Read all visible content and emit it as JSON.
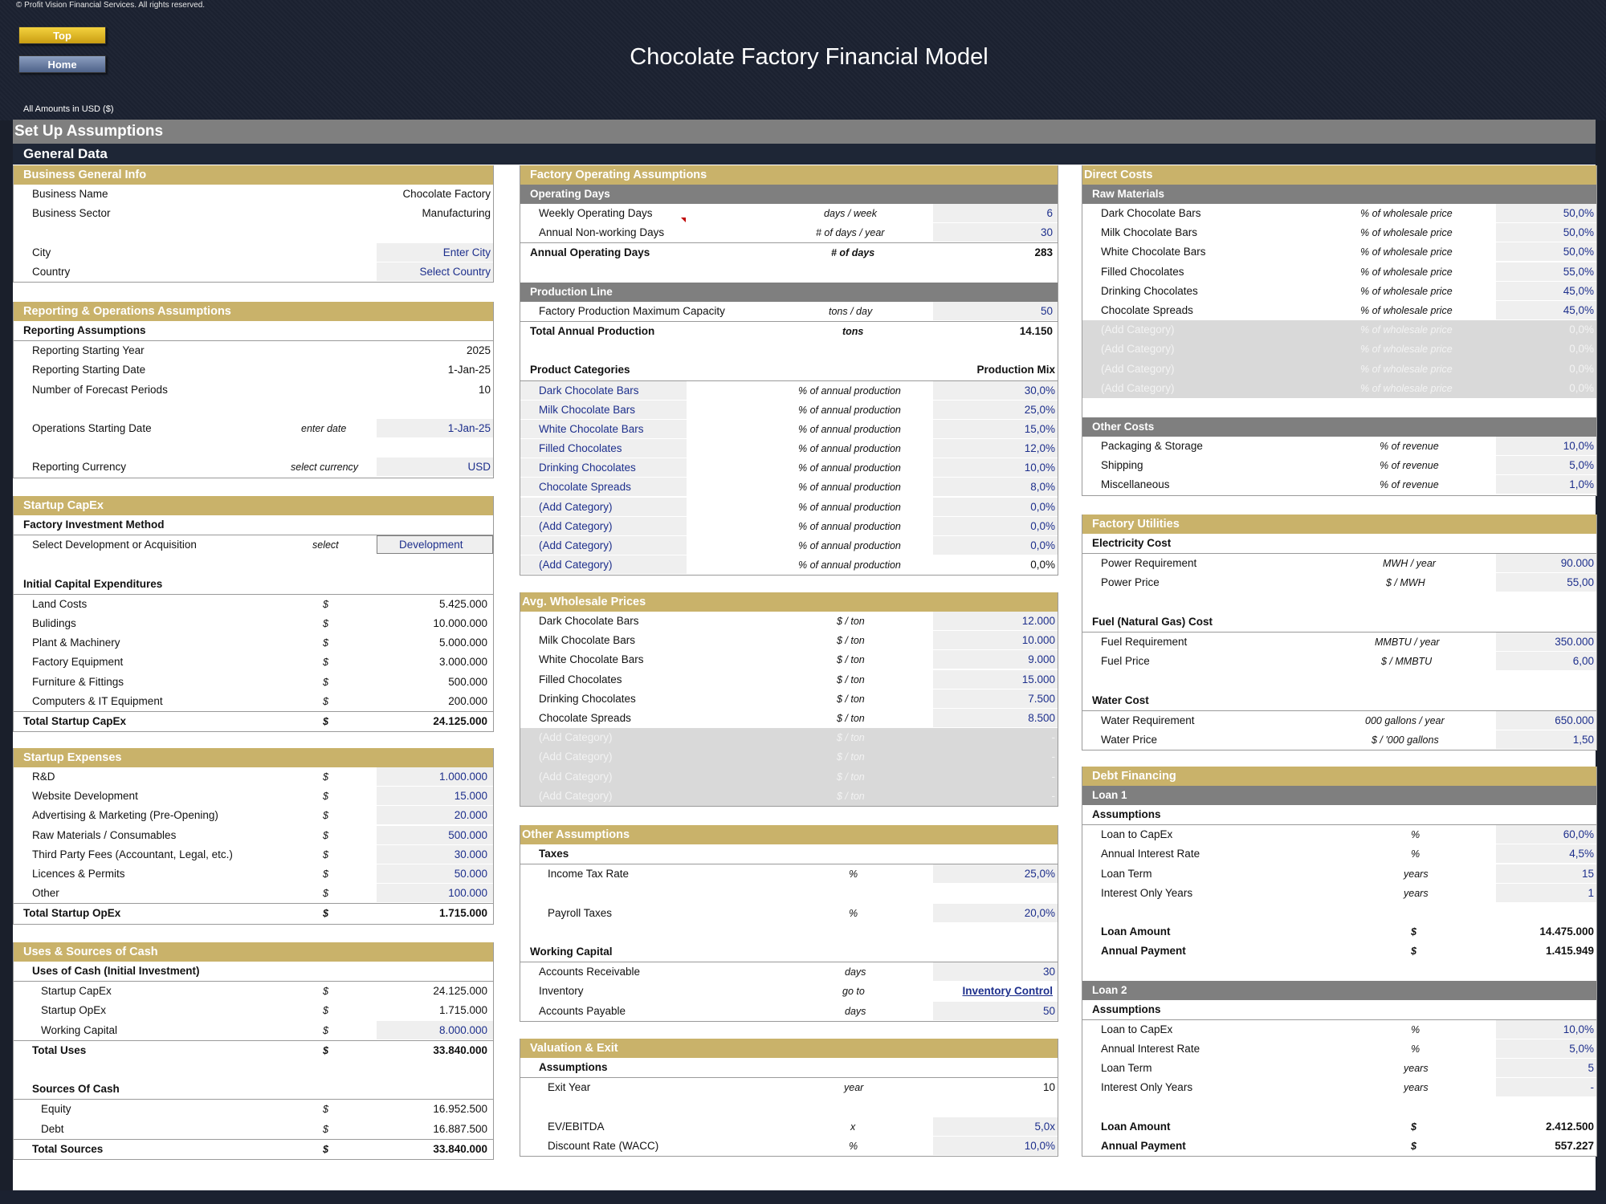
{
  "copyright": "© Profit Vision Financial Services. All rights reserved.",
  "buttons": {
    "top": "Top",
    "home": "Home"
  },
  "title": "Chocolate Factory Financial Model",
  "amounts_label": "All Amounts in  USD ($)",
  "section_title": "Set Up Assumptions",
  "subsection_title": "General Data",
  "business_info": {
    "header": "Business General Info",
    "business_name_label": "Business Name",
    "business_name": "Chocolate Factory",
    "sector_label": "Business Sector",
    "sector": "Manufacturing",
    "city_label": "City",
    "city": "Enter City",
    "country_label": "Country",
    "country": "Select Country"
  },
  "reporting": {
    "header": "Reporting & Operations Assumptions",
    "sub": "Reporting Assumptions",
    "start_year_label": "Reporting Starting Year",
    "start_year": "2025",
    "start_date_label": "Reporting Starting Date",
    "start_date": "1-Jan-25",
    "periods_label": "Number of Forecast Periods",
    "periods": "10",
    "ops_date_label": "Operations Starting Date",
    "ops_date_unit": "enter date",
    "ops_date": "1-Jan-25",
    "currency_label": "Reporting Currency",
    "currency_unit": "select currency",
    "currency": "USD"
  },
  "capex": {
    "header": "Startup CapEx",
    "method_sub": "Factory Investment Method",
    "method_label": "Select Development or Acquisition",
    "method_unit": "select",
    "method": "Development",
    "initial_sub": "Initial Capital Expenditures",
    "items": [
      {
        "label": "Land Costs",
        "unit": "$",
        "value": "5.425.000"
      },
      {
        "label": "Bulidings",
        "unit": "$",
        "value": "10.000.000"
      },
      {
        "label": "Plant & Machinery",
        "unit": "$",
        "value": "5.000.000"
      },
      {
        "label": "Factory Equipment",
        "unit": "$",
        "value": "3.000.000"
      },
      {
        "label": "Furniture & Fittings",
        "unit": "$",
        "value": "500.000"
      },
      {
        "label": "Computers & IT Equipment",
        "unit": "$",
        "value": "200.000"
      }
    ],
    "total_label": "Total Startup CapEx",
    "total_unit": "$",
    "total": "24.125.000"
  },
  "expenses": {
    "header": "Startup Expenses",
    "items": [
      {
        "label": "R&D",
        "unit": "$",
        "value": "1.000.000"
      },
      {
        "label": "Website Development",
        "unit": "$",
        "value": "15.000"
      },
      {
        "label": "Advertising & Marketing (Pre-Opening)",
        "unit": "$",
        "value": "20.000"
      },
      {
        "label": "Raw Materials / Consumables",
        "unit": "$",
        "value": "500.000"
      },
      {
        "label": "Third Party Fees (Accountant, Legal, etc.)",
        "unit": "$",
        "value": "30.000"
      },
      {
        "label": "Licences & Permits",
        "unit": "$",
        "value": "50.000"
      },
      {
        "label": "Other",
        "unit": "$",
        "value": "100.000"
      }
    ],
    "total_label": "Total Startup OpEx",
    "total_unit": "$",
    "total": "1.715.000"
  },
  "uses_sources": {
    "header": "Uses & Sources of Cash",
    "uses_sub": "Uses of Cash (Initial Investment)",
    "uses": [
      {
        "label": "Startup CapEx",
        "unit": "$",
        "value": "24.125.000"
      },
      {
        "label": "Startup OpEx",
        "unit": "$",
        "value": "1.715.000"
      },
      {
        "label": "Working Capital",
        "unit": "$",
        "value": "8.000.000"
      }
    ],
    "total_uses_label": "Total Uses",
    "total_uses_unit": "$",
    "total_uses": "33.840.000",
    "sources_sub": "Sources Of Cash",
    "sources": [
      {
        "label": "Equity",
        "unit": "$",
        "value": "16.952.500"
      },
      {
        "label": "Debt",
        "unit": "$",
        "value": "16.887.500"
      }
    ],
    "total_sources_label": "Total Sources",
    "total_sources_unit": "$",
    "total_sources": "33.840.000"
  },
  "factory_ops": {
    "header": "Factory Operating Assumptions",
    "op_days_sub": "Operating Days",
    "weekly_label": "Weekly Operating Days",
    "weekly_unit": "days / week",
    "weekly": "6",
    "nonwork_label": "Annual Non-working Days",
    "nonwork_unit": "# of days / year",
    "nonwork": "30",
    "annual_label": "Annual Operating Days",
    "annual_unit": "# of days",
    "annual": "283",
    "prod_sub": "Production Line",
    "capacity_label": "Factory Production Maximum Capacity",
    "capacity_unit": "tons / day",
    "capacity": "50",
    "total_prod_label": "Total Annual Production",
    "total_prod_unit": "tons",
    "total_prod": "14.150",
    "categories_label": "Product Categories",
    "mix_label": "Production Mix",
    "categories": [
      {
        "label": "Dark Chocolate Bars",
        "unit": "% of annual production",
        "value": "30,0%"
      },
      {
        "label": "Milk Chocolate Bars",
        "unit": "% of annual production",
        "value": "25,0%"
      },
      {
        "label": "White Chocolate Bars",
        "unit": "% of annual production",
        "value": "15,0%"
      },
      {
        "label": "Filled Chocolates",
        "unit": "% of annual production",
        "value": "12,0%"
      },
      {
        "label": "Drinking Chocolates",
        "unit": "% of annual production",
        "value": "10,0%"
      },
      {
        "label": "Chocolate Spreads",
        "unit": "% of annual production",
        "value": "8,0%"
      },
      {
        "label": "(Add Category)",
        "unit": "% of annual production",
        "value": "0,0%"
      },
      {
        "label": "(Add Category)",
        "unit": "% of annual production",
        "value": "0,0%"
      },
      {
        "label": "(Add Category)",
        "unit": "% of annual production",
        "value": "0,0%"
      },
      {
        "label": "(Add Category)",
        "unit": "% of annual production",
        "value": "0,0%"
      }
    ]
  },
  "wholesale": {
    "header": "Avg. Wholesale Prices",
    "items": [
      {
        "label": "Dark Chocolate Bars",
        "unit": "$ / ton",
        "value": "12.000"
      },
      {
        "label": "Milk Chocolate Bars",
        "unit": "$ / ton",
        "value": "10.000"
      },
      {
        "label": "White Chocolate Bars",
        "unit": "$ / ton",
        "value": "9.000"
      },
      {
        "label": "Filled Chocolates",
        "unit": "$ / ton",
        "value": "15.000"
      },
      {
        "label": "Drinking Chocolates",
        "unit": "$ / ton",
        "value": "7.500"
      },
      {
        "label": "Chocolate Spreads",
        "unit": "$ / ton",
        "value": "8.500"
      },
      {
        "label": "(Add Category)",
        "unit": "$ / ton",
        "value": "-"
      },
      {
        "label": "(Add Category)",
        "unit": "$ / ton",
        "value": "-"
      },
      {
        "label": "(Add Category)",
        "unit": "$ / ton",
        "value": "-"
      },
      {
        "label": "(Add Category)",
        "unit": "$ / ton",
        "value": "-"
      }
    ]
  },
  "other": {
    "header": "Other Assumptions",
    "taxes_sub": "Taxes",
    "income_label": "Income Tax Rate",
    "income_unit": "%",
    "income": "25,0%",
    "payroll_label": "Payroll Taxes",
    "payroll_unit": "%",
    "payroll": "20,0%",
    "wc_sub": "Working Capital",
    "ar_label": "Accounts Receivable",
    "ar_unit": "days",
    "ar": "30",
    "inv_label": "Inventory",
    "inv_unit": "go to",
    "inv": "Inventory Control",
    "ap_label": "Accounts Payable",
    "ap_unit": "days",
    "ap": "50"
  },
  "valuation": {
    "header": "Valuation & Exit",
    "sub": "Assumptions",
    "exit_label": "Exit Year",
    "exit_unit": "year",
    "exit": "10",
    "ev_label": "EV/EBITDA",
    "ev_unit": "x",
    "ev": "5,0x",
    "wacc_label": "Discount Rate (WACC)",
    "wacc_unit": "%",
    "wacc": "10,0%"
  },
  "direct_costs": {
    "header": "Direct Costs",
    "raw_sub": "Raw Materials",
    "raw": [
      {
        "label": "Dark Chocolate Bars",
        "unit": "% of wholesale price",
        "value": "50,0%"
      },
      {
        "label": "Milk Chocolate Bars",
        "unit": "% of wholesale price",
        "value": "50,0%"
      },
      {
        "label": "White Chocolate Bars",
        "unit": "% of wholesale price",
        "value": "50,0%"
      },
      {
        "label": "Filled Chocolates",
        "unit": "% of wholesale price",
        "value": "55,0%"
      },
      {
        "label": "Drinking Chocolates",
        "unit": "% of wholesale price",
        "value": "45,0%"
      },
      {
        "label": "Chocolate Spreads",
        "unit": "% of wholesale price",
        "value": "45,0%"
      },
      {
        "label": "(Add Category)",
        "unit": "% of wholesale price",
        "value": "0,0%"
      },
      {
        "label": "(Add Category)",
        "unit": "% of wholesale price",
        "value": "0,0%"
      },
      {
        "label": "(Add Category)",
        "unit": "% of wholesale price",
        "value": "0,0%"
      },
      {
        "label": "(Add Category)",
        "unit": "% of wholesale price",
        "value": "0,0%"
      }
    ],
    "other_sub": "Other Costs",
    "other": [
      {
        "label": "Packaging & Storage",
        "unit": "% of revenue",
        "value": "10,0%"
      },
      {
        "label": "Shipping",
        "unit": "% of revenue",
        "value": "5,0%"
      },
      {
        "label": "Miscellaneous",
        "unit": "% of revenue",
        "value": "1,0%"
      }
    ]
  },
  "utilities": {
    "header": "Factory Utilities",
    "elec_sub": "Electricity Cost",
    "power_req_label": "Power Requirement",
    "power_req_unit": "MWH / year",
    "power_req": "90.000",
    "power_price_label": "Power Price",
    "power_price_unit": "$ / MWH",
    "power_price": "55,00",
    "fuel_sub": "Fuel (Natural Gas) Cost",
    "fuel_req_label": "Fuel Requirement",
    "fuel_req_unit": "MMBTU / year",
    "fuel_req": "350.000",
    "fuel_price_label": "Fuel Price",
    "fuel_price_unit": "$ / MMBTU",
    "fuel_price": "6,00",
    "water_sub": "Water Cost",
    "water_req_label": "Water Requirement",
    "water_req_unit": "000 gallons / year",
    "water_req": "650.000",
    "water_price_label": "Water Price",
    "water_price_unit": "$ / '000 gallons",
    "water_price": "1,50"
  },
  "debt": {
    "header": "Debt Financing",
    "loan1": {
      "title": "Loan 1",
      "sub": "Assumptions",
      "ltc_label": "Loan to CapEx",
      "ltc_unit": "%",
      "ltc": "60,0%",
      "rate_label": "Annual Interest Rate",
      "rate_unit": "%",
      "rate": "4,5%",
      "term_label": "Loan Term",
      "term_unit": "years",
      "term": "15",
      "io_label": "Interest Only Years",
      "io_unit": "years",
      "io": "1",
      "amount_label": "Loan Amount",
      "amount_unit": "$",
      "amount": "14.475.000",
      "payment_label": "Annual Payment",
      "payment_unit": "$",
      "payment": "1.415.949"
    },
    "loan2": {
      "title": "Loan 2",
      "sub": "Assumptions",
      "ltc_label": "Loan to CapEx",
      "ltc_unit": "%",
      "ltc": "10,0%",
      "rate_label": "Annual Interest Rate",
      "rate_unit": "%",
      "rate": "5,0%",
      "term_label": "Loan Term",
      "term_unit": "years",
      "term": "5",
      "io_label": "Interest Only Years",
      "io_unit": "years",
      "io": "-",
      "amount_label": "Loan Amount",
      "amount_unit": "$",
      "amount": "2.412.500",
      "payment_label": "Annual Payment",
      "payment_unit": "$",
      "payment": "557.227"
    }
  },
  "colors": {
    "header_gold": "#c9b26a",
    "sub_grey": "#7f7f7f",
    "input_blue": "#1d2f8c",
    "input_bg": "#efefef",
    "btn_top": "#e6bb22",
    "btn_home": "#6a7da3"
  }
}
